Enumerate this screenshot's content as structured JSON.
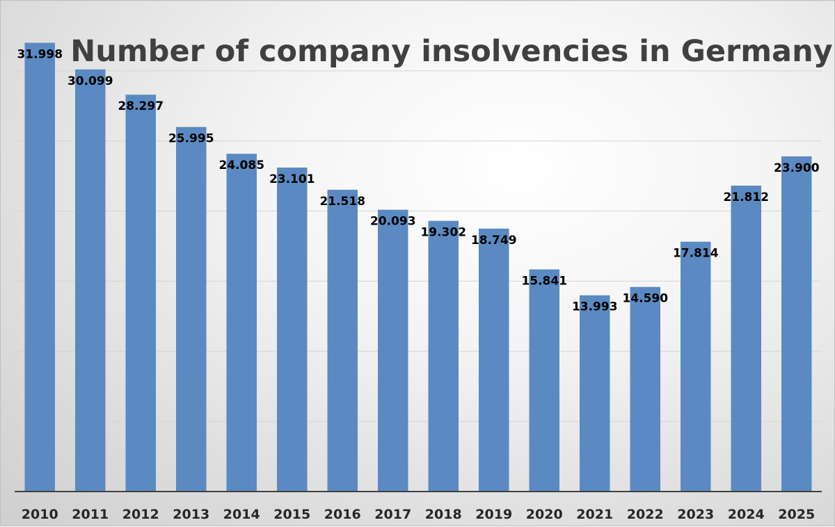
{
  "chart_data": {
    "type": "bar",
    "title": "Number of company insolvencies in Germany",
    "xlabel": "",
    "ylabel": "",
    "categories": [
      "2010",
      "2011",
      "2012",
      "2013",
      "2014",
      "2015",
      "2016",
      "2017",
      "2018",
      "2019",
      "2020",
      "2021",
      "2022",
      "2023",
      "2024",
      "2025"
    ],
    "values": [
      31998,
      30099,
      28297,
      25995,
      24085,
      23101,
      21518,
      20093,
      19302,
      18749,
      15841,
      13993,
      14590,
      17814,
      21812,
      23900
    ],
    "value_labels": [
      "31.998",
      "30.099",
      "28.297",
      "25.995",
      "24.085",
      "23.101",
      "21.518",
      "20.093",
      "19.302",
      "18.749",
      "15.841",
      "13.993",
      "14.590",
      "17.814",
      "21.812",
      "23.900"
    ],
    "ylim": [
      0,
      35000
    ],
    "grid": true,
    "grid_step": 5000,
    "y_tick_labels_shown": false,
    "legend": "none",
    "bar_color": "#5b8ac2"
  }
}
